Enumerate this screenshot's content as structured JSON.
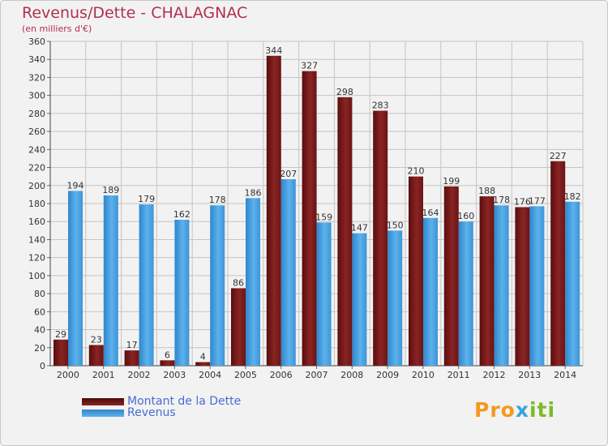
{
  "header": {
    "title": "Revenus/Dette - CHALAGNAC",
    "subtitle": "(en milliers d'€)"
  },
  "chart_data": {
    "type": "bar",
    "title": "Revenus/Dette - CHALAGNAC",
    "subtitle": "(en milliers d'€)",
    "xlabel": "",
    "ylabel": "",
    "ylim": [
      0,
      360
    ],
    "ytick_step": 20,
    "grid": true,
    "categories": [
      "2000",
      "2001",
      "2002",
      "2003",
      "2004",
      "2005",
      "2006",
      "2007",
      "2008",
      "2009",
      "2010",
      "2011",
      "2012",
      "2013",
      "2014"
    ],
    "series": [
      {
        "name": "Montant de la Dette",
        "color": "#7a1c1c",
        "values": [
          29,
          23,
          17,
          6,
          4,
          86,
          344,
          327,
          298,
          283,
          210,
          199,
          188,
          176,
          227
        ]
      },
      {
        "name": "Revenus",
        "color": "#4ea6e4",
        "values": [
          194,
          189,
          179,
          162,
          178,
          186,
          207,
          159,
          147,
          150,
          164,
          160,
          178,
          177,
          182
        ]
      }
    ],
    "legend_position": "bottom-left"
  },
  "legend": {
    "debt_label": "Montant de la Dette",
    "revenue_label": "Revenus"
  },
  "logo": {
    "part1": "Pro",
    "part2": "x",
    "part3": "iti"
  }
}
